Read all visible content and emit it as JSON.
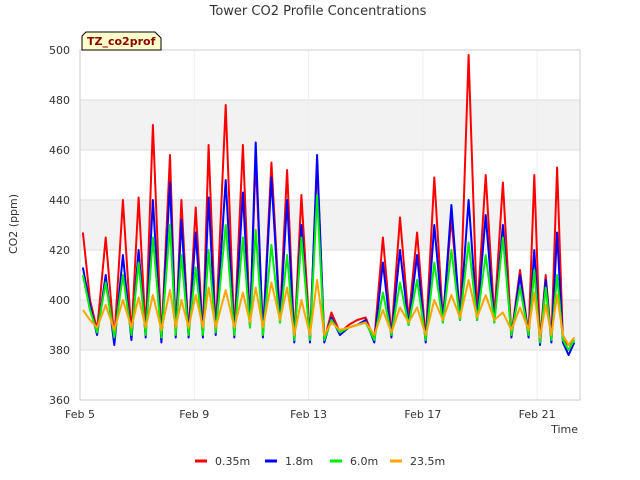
{
  "chart_data": {
    "type": "line",
    "title": "Tower CO2 Profile Concentrations",
    "xlabel": "Time",
    "ylabel": "CO2 (ppm)",
    "badge": "TZ_co2prof",
    "ylim": [
      360,
      500
    ],
    "y_ticks": [
      360,
      380,
      400,
      420,
      440,
      460,
      480,
      500
    ],
    "xlim": [
      5,
      22.5
    ],
    "x_ticks": [
      {
        "value": 5,
        "label": "Feb 5"
      },
      {
        "value": 9,
        "label": "Feb 9"
      },
      {
        "value": 13,
        "label": "Feb 13"
      },
      {
        "value": 17,
        "label": "Feb 17"
      },
      {
        "value": 21,
        "label": "Feb 21"
      }
    ],
    "grid": true,
    "legend_position": "bottom",
    "colors": {
      "0.35m": "#ff0000",
      "1.8m": "#0000ff",
      "6.0m": "#00ee00",
      "23.5m": "#ffa500"
    },
    "series": [
      {
        "name": "0.35m",
        "x": [
          5.1,
          5.35,
          5.6,
          5.9,
          6.2,
          6.5,
          6.8,
          7.05,
          7.3,
          7.55,
          7.85,
          8.15,
          8.35,
          8.55,
          8.8,
          9.05,
          9.3,
          9.5,
          9.75,
          10.1,
          10.4,
          10.7,
          10.95,
          11.15,
          11.4,
          11.7,
          12.0,
          12.25,
          12.5,
          12.75,
          13.05,
          13.3,
          13.55,
          13.8,
          14.1,
          14.4,
          14.7,
          15.0,
          15.3,
          15.6,
          15.9,
          16.2,
          16.5,
          16.8,
          17.1,
          17.4,
          17.7,
          18.0,
          18.3,
          18.6,
          18.9,
          19.2,
          19.5,
          19.8,
          20.1,
          20.4,
          20.7,
          20.9,
          21.1,
          21.3,
          21.5,
          21.7,
          21.9,
          22.1,
          22.3
        ],
        "y": [
          427,
          400,
          388,
          425,
          384,
          440,
          386,
          441,
          387,
          470,
          384,
          458,
          386,
          440,
          386,
          437,
          386,
          462,
          387,
          478,
          386,
          462,
          390,
          457,
          386,
          455,
          393,
          452,
          384,
          442,
          384,
          455,
          384,
          395,
          387,
          390,
          392,
          393,
          384,
          425,
          386,
          433,
          392,
          427,
          384,
          449,
          392,
          433,
          393,
          498,
          394,
          450,
          393,
          447,
          386,
          412,
          386,
          450,
          383,
          410,
          384,
          453,
          384,
          382,
          384
        ]
      },
      {
        "name": "1.8m",
        "x": [
          5.1,
          5.35,
          5.6,
          5.9,
          6.2,
          6.5,
          6.8,
          7.05,
          7.3,
          7.55,
          7.85,
          8.15,
          8.35,
          8.55,
          8.8,
          9.05,
          9.3,
          9.5,
          9.75,
          10.1,
          10.4,
          10.7,
          10.95,
          11.15,
          11.4,
          11.7,
          12.0,
          12.25,
          12.5,
          12.75,
          13.05,
          13.3,
          13.55,
          13.8,
          14.1,
          14.4,
          14.7,
          15.0,
          15.3,
          15.6,
          15.9,
          16.2,
          16.5,
          16.8,
          17.1,
          17.4,
          17.7,
          18.0,
          18.3,
          18.6,
          18.9,
          19.2,
          19.5,
          19.8,
          20.1,
          20.4,
          20.7,
          20.9,
          21.1,
          21.3,
          21.5,
          21.7,
          21.9,
          22.1,
          22.3
        ],
        "y": [
          413,
          398,
          386,
          410,
          382,
          418,
          384,
          420,
          385,
          440,
          383,
          447,
          385,
          432,
          385,
          427,
          385,
          441,
          386,
          448,
          385,
          443,
          389,
          463,
          385,
          449,
          391,
          440,
          383,
          430,
          383,
          458,
          383,
          393,
          386,
          389,
          390,
          392,
          383,
          415,
          385,
          420,
          390,
          418,
          383,
          430,
          391,
          438,
          392,
          440,
          392,
          434,
          391,
          430,
          385,
          410,
          385,
          420,
          382,
          408,
          383,
          427,
          383,
          378,
          383
        ]
      },
      {
        "name": "6.0m",
        "x": [
          5.1,
          5.35,
          5.6,
          5.9,
          6.2,
          6.5,
          6.8,
          7.05,
          7.3,
          7.55,
          7.85,
          8.15,
          8.35,
          8.55,
          8.8,
          9.05,
          9.3,
          9.5,
          9.75,
          10.1,
          10.4,
          10.7,
          10.95,
          11.15,
          11.4,
          11.7,
          12.0,
          12.25,
          12.5,
          12.75,
          13.05,
          13.3,
          13.55,
          13.8,
          14.1,
          14.4,
          14.7,
          15.0,
          15.3,
          15.6,
          15.9,
          16.2,
          16.5,
          16.8,
          17.1,
          17.4,
          17.7,
          18.0,
          18.3,
          18.6,
          18.9,
          19.2,
          19.5,
          19.8,
          20.1,
          20.4,
          20.7,
          20.9,
          21.1,
          21.3,
          21.5,
          21.7,
          21.9,
          22.1,
          22.3
        ],
        "y": [
          410,
          396,
          387,
          407,
          385,
          410,
          386,
          415,
          386,
          425,
          385,
          430,
          386,
          418,
          386,
          413,
          386,
          420,
          387,
          430,
          386,
          425,
          389,
          428,
          386,
          422,
          391,
          418,
          384,
          425,
          384,
          442,
          384,
          392,
          387,
          389,
          390,
          391,
          384,
          403,
          386,
          407,
          390,
          408,
          384,
          415,
          391,
          420,
          392,
          423,
          392,
          418,
          391,
          425,
          386,
          405,
          386,
          412,
          383,
          405,
          384,
          410,
          384,
          380,
          384
        ]
      },
      {
        "name": "23.5m",
        "x": [
          5.1,
          5.35,
          5.6,
          5.9,
          6.2,
          6.5,
          6.8,
          7.05,
          7.3,
          7.55,
          7.85,
          8.15,
          8.35,
          8.55,
          8.8,
          9.05,
          9.3,
          9.5,
          9.75,
          10.1,
          10.4,
          10.7,
          10.95,
          11.15,
          11.4,
          11.7,
          12.0,
          12.25,
          12.5,
          12.75,
          13.05,
          13.3,
          13.55,
          13.8,
          14.1,
          14.4,
          14.7,
          15.0,
          15.3,
          15.6,
          15.9,
          16.2,
          16.5,
          16.8,
          17.1,
          17.4,
          17.7,
          18.0,
          18.3,
          18.6,
          18.9,
          19.2,
          19.5,
          19.8,
          20.1,
          20.4,
          20.7,
          20.9,
          21.1,
          21.3,
          21.5,
          21.7,
          21.9,
          22.1,
          22.3
        ],
        "y": [
          396,
          392,
          389,
          398,
          388,
          400,
          389,
          401,
          389,
          402,
          388,
          404,
          389,
          400,
          389,
          402,
          389,
          405,
          389,
          404,
          389,
          403,
          391,
          405,
          389,
          407,
          392,
          405,
          386,
          400,
          386,
          408,
          386,
          391,
          388,
          389,
          390,
          391,
          386,
          396,
          387,
          397,
          391,
          397,
          386,
          400,
          392,
          402,
          393,
          408,
          393,
          402,
          392,
          395,
          388,
          397,
          388,
          403,
          385,
          398,
          386,
          402,
          386,
          382,
          385
        ]
      }
    ]
  }
}
